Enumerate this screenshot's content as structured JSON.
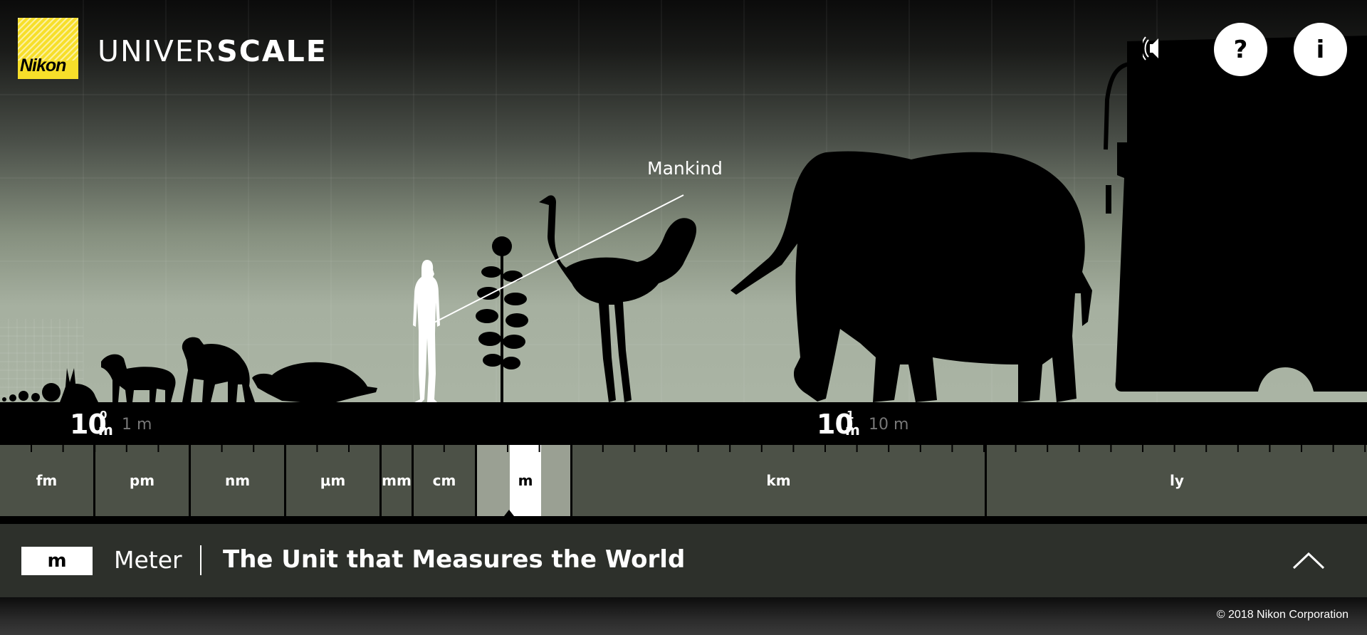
{
  "header": {
    "logo_text": "Nikon",
    "app_title_light": "UNIVER",
    "app_title_bold": "SCALE",
    "help_label": "?",
    "info_label": "i"
  },
  "scene": {
    "label": "Mankind",
    "objects": [
      "spheres",
      "rabbit",
      "dog",
      "chimpanzee",
      "turtle",
      "human",
      "sunflower",
      "ostrich",
      "elephant",
      "bus"
    ]
  },
  "readout": [
    {
      "base": "10",
      "power": "0",
      "unit": "m",
      "equivalent": "1 m"
    },
    {
      "base": "10",
      "power": "1",
      "unit": "m",
      "equivalent": "10 m"
    }
  ],
  "ruler": {
    "units": [
      "fm",
      "pm",
      "nm",
      "μm",
      "mm",
      "cm",
      "m",
      "km",
      "ly"
    ],
    "active": "m"
  },
  "info": {
    "unit_symbol": "m",
    "unit_name": "Meter",
    "title": "The Unit that Measures the World"
  },
  "footer": {
    "copyright": "© 2018 Nikon Corporation"
  },
  "colors": {
    "logo_yellow": "#f7df2a",
    "ruler_bg": "#4c5147",
    "info_bg": "#2d302b"
  }
}
